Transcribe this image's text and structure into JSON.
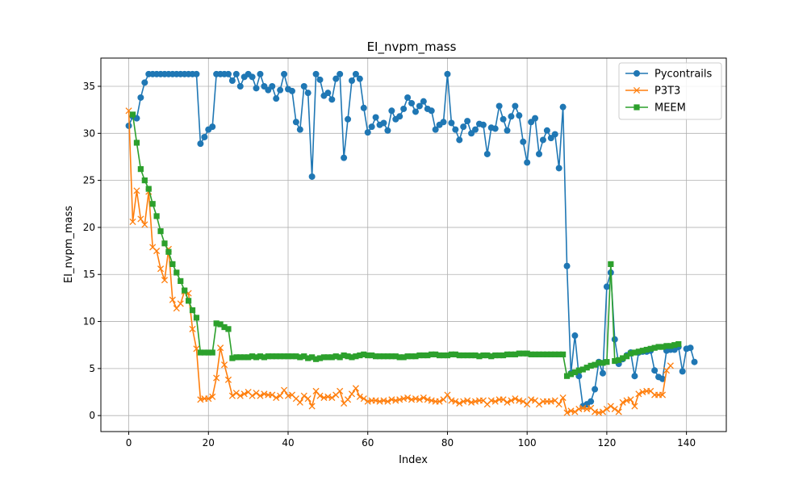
{
  "chart_data": {
    "type": "line",
    "title": "EI_nvpm_mass",
    "xlabel": "Index",
    "ylabel": "EI_nvpm_mass",
    "xlim": [
      -7,
      150
    ],
    "ylim": [
      -1.7,
      38.0
    ],
    "xticks": [
      0,
      20,
      40,
      60,
      80,
      100,
      120,
      140
    ],
    "yticks": [
      0,
      5,
      10,
      15,
      20,
      25,
      30,
      35
    ],
    "grid": true,
    "legend": "top-right",
    "series": [
      {
        "name": "Pycontrails",
        "color": "#1f77b4",
        "marker": "circle",
        "x": [
          0,
          1,
          2,
          3,
          4,
          5,
          6,
          7,
          8,
          9,
          10,
          11,
          12,
          13,
          14,
          15,
          16,
          17,
          18,
          19,
          20,
          21,
          22,
          23,
          24,
          25,
          26,
          27,
          28,
          29,
          30,
          31,
          32,
          33,
          34,
          35,
          36,
          37,
          38,
          39,
          40,
          41,
          42,
          43,
          44,
          45,
          46,
          47,
          48,
          49,
          50,
          51,
          52,
          53,
          54,
          55,
          56,
          57,
          58,
          59,
          60,
          61,
          62,
          63,
          64,
          65,
          66,
          67,
          68,
          69,
          70,
          71,
          72,
          73,
          74,
          75,
          76,
          77,
          78,
          79,
          80,
          81,
          82,
          83,
          84,
          85,
          86,
          87,
          88,
          89,
          90,
          91,
          92,
          93,
          94,
          95,
          96,
          97,
          98,
          99,
          100,
          101,
          102,
          103,
          104,
          105,
          106,
          107,
          108,
          109,
          110,
          111,
          112,
          113,
          114,
          115,
          116,
          117,
          118,
          119,
          120,
          121,
          122,
          123,
          124,
          125,
          126,
          127,
          128,
          129,
          130,
          131,
          132,
          133,
          134,
          135,
          136,
          137,
          138,
          139,
          140,
          141,
          142
        ],
        "y": [
          30.8,
          31.8,
          31.6,
          33.8,
          35.4,
          36.3,
          36.3,
          36.3,
          36.3,
          36.3,
          36.3,
          36.3,
          36.3,
          36.3,
          36.3,
          36.3,
          36.3,
          36.3,
          28.9,
          29.6,
          30.4,
          30.7,
          36.3,
          36.3,
          36.3,
          36.3,
          35.6,
          36.3,
          35.0,
          36.0,
          36.3,
          36.0,
          34.8,
          36.3,
          35.0,
          34.6,
          35.0,
          33.7,
          34.6,
          36.3,
          34.7,
          34.5,
          31.2,
          30.4,
          35.0,
          34.3,
          25.4,
          36.3,
          35.7,
          34.0,
          34.3,
          33.6,
          35.8,
          36.3,
          27.4,
          31.5,
          35.6,
          36.3,
          35.8,
          32.7,
          30.1,
          30.7,
          31.7,
          30.9,
          31.1,
          30.3,
          32.4,
          31.5,
          31.8,
          32.6,
          33.8,
          33.2,
          32.3,
          32.9,
          33.4,
          32.6,
          32.4,
          30.4,
          30.9,
          31.2,
          36.3,
          31.1,
          30.4,
          29.3,
          30.7,
          31.3,
          30.0,
          30.4,
          31.0,
          30.9,
          27.8,
          30.6,
          30.5,
          32.9,
          31.5,
          30.3,
          31.8,
          32.9,
          31.9,
          29.1,
          26.9,
          31.2,
          31.6,
          27.8,
          29.3,
          30.3,
          29.5,
          29.9,
          26.3,
          32.8,
          15.9,
          4.5,
          8.5,
          4.2,
          1.0,
          1.2,
          1.5,
          2.8,
          5.7,
          4.5,
          13.7,
          15.2,
          8.1,
          5.5,
          6.0,
          6.4,
          6.7,
          4.2,
          6.7,
          6.8,
          6.8,
          6.9,
          4.8,
          4.1,
          3.9,
          6.9,
          7.0,
          7.0,
          7.3,
          4.7,
          7.1,
          7.2,
          5.7
        ]
      },
      {
        "name": "P3T3",
        "color": "#ff7f0e",
        "marker": "x",
        "x": [
          0,
          1,
          2,
          3,
          4,
          5,
          6,
          7,
          8,
          9,
          10,
          11,
          12,
          13,
          14,
          15,
          16,
          17,
          18,
          19,
          20,
          21,
          22,
          23,
          24,
          25,
          26,
          27,
          28,
          29,
          30,
          31,
          32,
          33,
          34,
          35,
          36,
          37,
          38,
          39,
          40,
          41,
          42,
          43,
          44,
          45,
          46,
          47,
          48,
          49,
          50,
          51,
          52,
          53,
          54,
          55,
          56,
          57,
          58,
          59,
          60,
          61,
          62,
          63,
          64,
          65,
          66,
          67,
          68,
          69,
          70,
          71,
          72,
          73,
          74,
          75,
          76,
          77,
          78,
          79,
          80,
          81,
          82,
          83,
          84,
          85,
          86,
          87,
          88,
          89,
          90,
          91,
          92,
          93,
          94,
          95,
          96,
          97,
          98,
          99,
          100,
          101,
          102,
          103,
          104,
          105,
          106,
          107,
          108,
          109,
          110,
          111,
          112,
          113,
          114,
          115,
          116,
          117,
          118,
          119,
          120,
          121,
          122,
          123,
          124,
          125,
          126,
          127,
          128,
          129,
          130,
          131,
          132,
          133,
          134,
          135,
          136
        ],
        "y": [
          32.4,
          20.6,
          23.9,
          20.9,
          20.3,
          23.8,
          17.9,
          17.5,
          15.6,
          14.4,
          17.7,
          12.3,
          11.4,
          11.9,
          13.2,
          13.0,
          9.2,
          7.1,
          1.7,
          1.8,
          1.8,
          2.0,
          4.0,
          7.2,
          5.4,
          3.8,
          2.1,
          2.4,
          2.1,
          2.3,
          2.5,
          2.1,
          2.4,
          2.1,
          2.3,
          2.2,
          2.2,
          1.9,
          2.1,
          2.7,
          2.1,
          2.2,
          1.8,
          1.4,
          2.1,
          1.8,
          1.0,
          2.6,
          2.1,
          1.9,
          2.0,
          1.9,
          2.2,
          2.6,
          1.3,
          1.7,
          2.3,
          2.9,
          2.0,
          1.8,
          1.5,
          1.6,
          1.6,
          1.5,
          1.6,
          1.5,
          1.7,
          1.6,
          1.7,
          1.8,
          1.9,
          1.7,
          1.8,
          1.7,
          1.9,
          1.7,
          1.6,
          1.5,
          1.5,
          1.7,
          2.2,
          1.6,
          1.5,
          1.3,
          1.5,
          1.6,
          1.4,
          1.5,
          1.6,
          1.6,
          1.2,
          1.6,
          1.5,
          1.7,
          1.7,
          1.4,
          1.6,
          1.8,
          1.6,
          1.5,
          1.2,
          1.7,
          1.6,
          1.2,
          1.5,
          1.5,
          1.5,
          1.6,
          1.2,
          1.9,
          0.3,
          0.5,
          0.4,
          0.7,
          0.8,
          0.7,
          0.8,
          0.4,
          0.3,
          0.4,
          0.7,
          1.0,
          0.7,
          0.4,
          1.4,
          1.6,
          1.7,
          1.0,
          2.3,
          2.5,
          2.6,
          2.6,
          2.2,
          2.2,
          2.2,
          4.8,
          5.3
        ]
      },
      {
        "name": "MEEM",
        "color": "#2ca02c",
        "marker": "square",
        "x": [
          1,
          2,
          3,
          4,
          5,
          6,
          7,
          8,
          9,
          10,
          11,
          12,
          13,
          14,
          15,
          16,
          17,
          18,
          19,
          20,
          21,
          22,
          23,
          24,
          25,
          26,
          27,
          28,
          29,
          30,
          31,
          32,
          33,
          34,
          35,
          36,
          37,
          38,
          39,
          40,
          41,
          42,
          43,
          44,
          45,
          46,
          47,
          48,
          49,
          50,
          51,
          52,
          53,
          54,
          55,
          56,
          57,
          58,
          59,
          60,
          61,
          62,
          63,
          64,
          65,
          66,
          67,
          68,
          69,
          70,
          71,
          72,
          73,
          74,
          75,
          76,
          77,
          78,
          79,
          80,
          81,
          82,
          83,
          84,
          85,
          86,
          87,
          88,
          89,
          90,
          91,
          92,
          93,
          94,
          95,
          96,
          97,
          98,
          99,
          100,
          101,
          102,
          103,
          104,
          105,
          106,
          107,
          108,
          109,
          110,
          111,
          112,
          113,
          114,
          115,
          116,
          117,
          118,
          119,
          120,
          121,
          122,
          123,
          124,
          125,
          126,
          127,
          128,
          129,
          130,
          131,
          132,
          133,
          134,
          135,
          136,
          137,
          138
        ],
        "y": [
          32.0,
          29.0,
          26.2,
          25.0,
          24.1,
          22.5,
          21.2,
          19.6,
          18.3,
          17.4,
          16.1,
          15.2,
          14.3,
          13.3,
          12.2,
          11.2,
          10.4,
          6.7,
          6.7,
          6.7,
          6.7,
          9.8,
          9.7,
          9.4,
          9.2,
          6.1,
          6.2,
          6.2,
          6.2,
          6.2,
          6.3,
          6.2,
          6.3,
          6.2,
          6.3,
          6.3,
          6.3,
          6.3,
          6.3,
          6.3,
          6.3,
          6.3,
          6.2,
          6.3,
          6.1,
          6.2,
          6.0,
          6.1,
          6.2,
          6.2,
          6.2,
          6.3,
          6.2,
          6.4,
          6.3,
          6.2,
          6.3,
          6.4,
          6.5,
          6.4,
          6.4,
          6.3,
          6.3,
          6.3,
          6.3,
          6.3,
          6.3,
          6.2,
          6.2,
          6.3,
          6.3,
          6.3,
          6.4,
          6.4,
          6.4,
          6.5,
          6.5,
          6.4,
          6.4,
          6.4,
          6.5,
          6.5,
          6.4,
          6.4,
          6.4,
          6.4,
          6.4,
          6.3,
          6.4,
          6.4,
          6.3,
          6.4,
          6.4,
          6.4,
          6.5,
          6.5,
          6.5,
          6.6,
          6.6,
          6.6,
          6.5,
          6.5,
          6.5,
          6.5,
          6.5,
          6.5,
          6.5,
          6.5,
          6.5,
          4.2,
          4.4,
          4.6,
          4.8,
          4.9,
          5.1,
          5.3,
          5.4,
          5.6,
          5.6,
          5.7,
          16.1,
          5.8,
          5.9,
          6.1,
          6.3,
          6.6,
          6.7,
          6.8,
          6.9,
          7.0,
          7.1,
          7.2,
          7.3,
          7.3,
          7.4,
          7.4,
          7.5,
          7.6
        ]
      }
    ]
  }
}
